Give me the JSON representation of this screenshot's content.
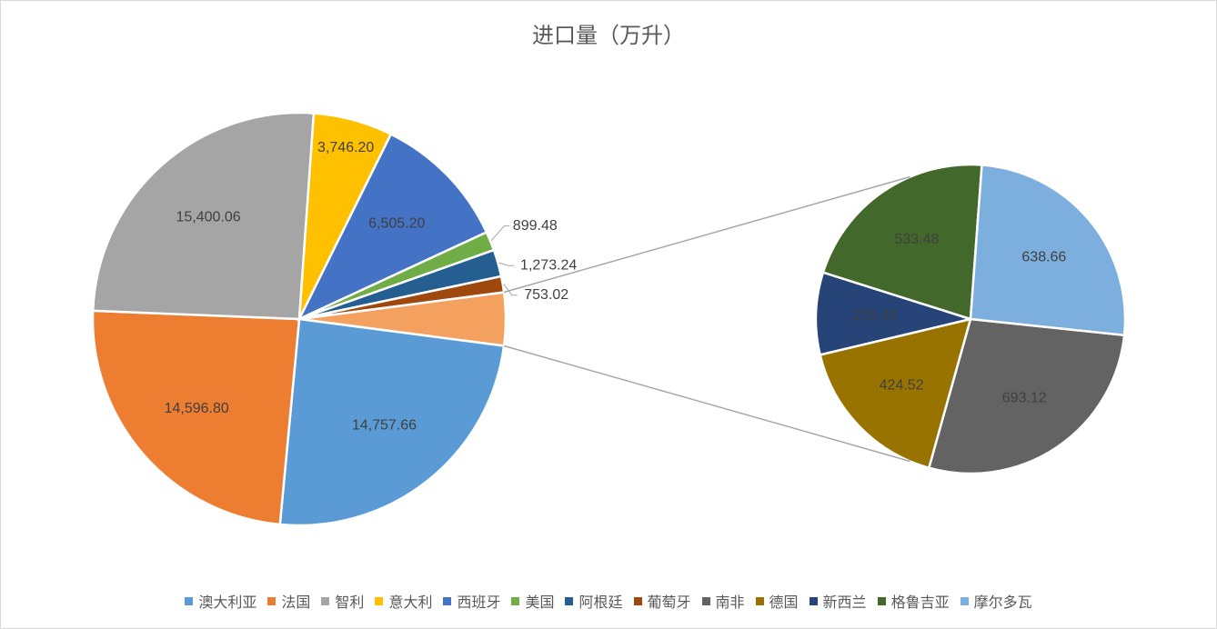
{
  "chart_data": {
    "type": "pie",
    "subtype": "pie-of-pie",
    "title": "进口量（万升）",
    "categories": [
      "澳大利亚",
      "法国",
      "智利",
      "意大利",
      "西班牙",
      "美国",
      "阿根廷",
      "葡萄牙",
      "南非",
      "德国",
      "新西兰",
      "格鲁吉亚",
      "摩尔多瓦"
    ],
    "values": [
      14757.66,
      14596.8,
      15400.06,
      3746.2,
      6505.2,
      899.48,
      1273.24,
      753.02,
      693.12,
      424.52,
      215.44,
      533.48,
      638.66
    ],
    "value_labels": [
      "14,757.66",
      "14,596.80",
      "15,400.06",
      "3,746.20",
      "6,505.20",
      "899.48",
      "1,273.24",
      "753.02",
      "693.12",
      "424.52",
      "215.44",
      "533.48",
      "638.66"
    ],
    "colors": [
      "#5b9bd5",
      "#ed7d31",
      "#a5a5a5",
      "#ffc000",
      "#4472c4",
      "#70ad47",
      "#255e91",
      "#9e480e",
      "#636363",
      "#997300",
      "#264478",
      "#43682b",
      "#7cafdd"
    ],
    "main_pie_categories": [
      "澳大利亚",
      "法国",
      "智利",
      "意大利",
      "西班牙",
      "美国",
      "阿根廷",
      "葡萄牙"
    ],
    "secondary_pie_categories": [
      "南非",
      "德国",
      "新西兰",
      "格鲁吉亚",
      "摩尔多瓦"
    ],
    "legend_position": "bottom"
  }
}
